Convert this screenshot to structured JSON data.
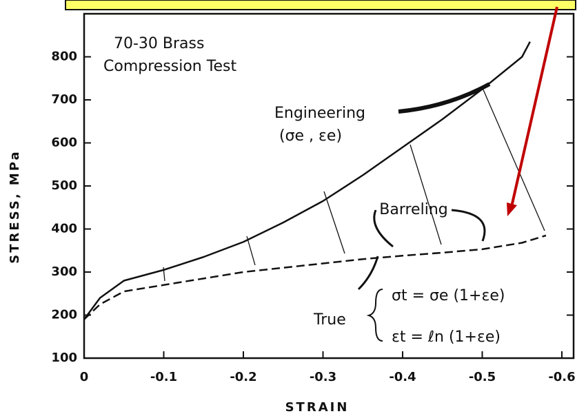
{
  "chart_data": {
    "type": "line",
    "title": [
      "70-30 Brass",
      "Compression Test"
    ],
    "x_label": "STRAIN",
    "y_label": "STRESS, MPa",
    "xlim": [
      0,
      -0.6
    ],
    "ylim": [
      100,
      900
    ],
    "xticks": [
      0,
      -0.1,
      -0.2,
      -0.3,
      -0.4,
      -0.5,
      -0.6
    ],
    "yticks": [
      100,
      200,
      300,
      400,
      500,
      600,
      700,
      800
    ],
    "series": [
      {
        "name": "Engineering",
        "color": "#111111",
        "dash": false,
        "x": [
          0,
          -0.02,
          -0.05,
          -0.1,
          -0.15,
          -0.2,
          -0.25,
          -0.3,
          -0.35,
          -0.4,
          -0.45,
          -0.5,
          -0.55,
          -0.56
        ],
        "values": [
          190,
          240,
          280,
          305,
          335,
          370,
          415,
          465,
          525,
          590,
          655,
          725,
          800,
          835
        ]
      },
      {
        "name": "True",
        "color": "#111111",
        "dash": true,
        "x": [
          0,
          -0.02,
          -0.05,
          -0.1,
          -0.15,
          -0.2,
          -0.25,
          -0.3,
          -0.35,
          -0.4,
          -0.45,
          -0.5,
          -0.55,
          -0.58
        ],
        "values": [
          190,
          225,
          255,
          270,
          285,
          300,
          310,
          320,
          330,
          338,
          345,
          353,
          368,
          385
        ]
      }
    ],
    "annotations": {
      "engineering_symbol": "(σe , εe)",
      "barreling": "Barreling",
      "true_stress": "σt = σe (1+εe)",
      "true_strain": "εt = ℓn (1+εe)"
    }
  }
}
